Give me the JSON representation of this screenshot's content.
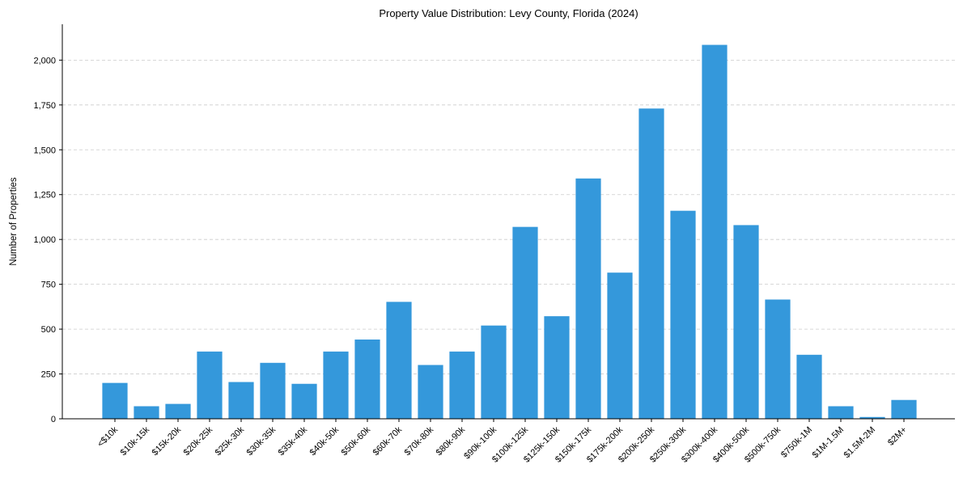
{
  "chart_data": {
    "type": "bar",
    "title": "Property Value Distribution: Levy County, Florida (2024)",
    "xlabel": "",
    "ylabel": "Number of Properties",
    "ylim": [
      0,
      2200
    ],
    "yticks": [
      0,
      250,
      500,
      750,
      1000,
      1250,
      1500,
      1750,
      2000
    ],
    "ytick_labels": [
      "0",
      "250",
      "500",
      "750",
      "1,000",
      "1,250",
      "1,500",
      "1,750",
      "2,000"
    ],
    "grid": "y-dashed",
    "bar_color": "#3498db",
    "categories": [
      "<$10k",
      "$10k-15k",
      "$15k-20k",
      "$20k-25k",
      "$25k-30k",
      "$30k-35k",
      "$35k-40k",
      "$40k-50k",
      "$50k-60k",
      "$60k-70k",
      "$70k-80k",
      "$80k-90k",
      "$90k-100k",
      "$100k-125k",
      "$125k-150k",
      "$150k-175k",
      "$175k-200k",
      "$200k-250k",
      "$250k-300k",
      "$300k-400k",
      "$400k-500k",
      "$500k-750k",
      "$750k-1M",
      "$1M-1.5M",
      "$1.5M-2M",
      "$2M+"
    ],
    "values": [
      200,
      70,
      83,
      375,
      205,
      312,
      195,
      375,
      442,
      652,
      300,
      375,
      520,
      1070,
      572,
      1340,
      815,
      1730,
      1160,
      2085,
      1080,
      665,
      357,
      70,
      10,
      105
    ]
  }
}
